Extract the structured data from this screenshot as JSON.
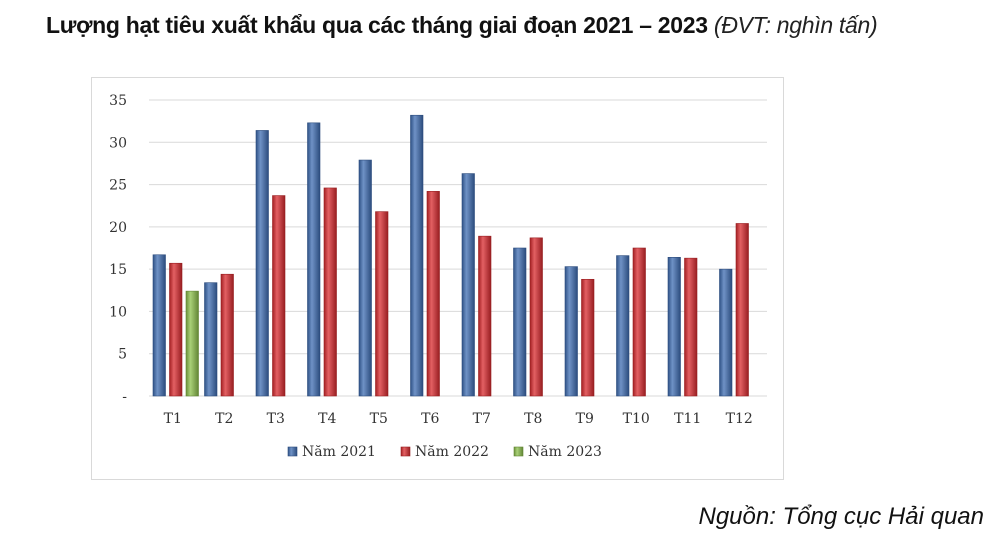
{
  "header": {
    "title": "Lượng hạt tiêu xuất khẩu qua các tháng giai đoạn 2021 – 2023",
    "unit": "(ĐVT: nghìn tấn)"
  },
  "footer": {
    "source": "Nguồn: Tổng cục Hải quan"
  },
  "colors": {
    "series_2021": "#3f6db3",
    "series_2022": "#d92b2f",
    "series_2023": "#8cc04b",
    "grid": "#d9d9d9",
    "axis_text": "#333333"
  },
  "chart_data": {
    "type": "bar",
    "title": "Lượng hạt tiêu xuất khẩu qua các tháng giai đoạn 2021 – 2023",
    "xlabel": "",
    "ylabel": "",
    "ylim": [
      0,
      35
    ],
    "yticks": [
      0,
      5,
      10,
      15,
      20,
      25,
      30,
      35
    ],
    "ytick_labels": [
      "-",
      "5",
      "10",
      "15",
      "20",
      "25",
      "30",
      "35"
    ],
    "grid": true,
    "legend_position": "bottom",
    "categories": [
      "T1",
      "T2",
      "T3",
      "T4",
      "T5",
      "T6",
      "T7",
      "T8",
      "T9",
      "T10",
      "T11",
      "T12"
    ],
    "series": [
      {
        "name": "Năm 2021",
        "values": [
          16.7,
          13.4,
          31.4,
          32.3,
          27.9,
          33.2,
          26.3,
          17.5,
          15.3,
          16.6,
          16.4,
          15.0
        ]
      },
      {
        "name": "Năm 2022",
        "values": [
          15.7,
          14.4,
          23.7,
          24.6,
          21.8,
          24.2,
          18.9,
          18.7,
          13.8,
          17.5,
          16.3,
          20.4
        ]
      },
      {
        "name": "Năm 2023",
        "values": [
          12.4,
          null,
          null,
          null,
          null,
          null,
          null,
          null,
          null,
          null,
          null,
          null
        ]
      }
    ]
  }
}
